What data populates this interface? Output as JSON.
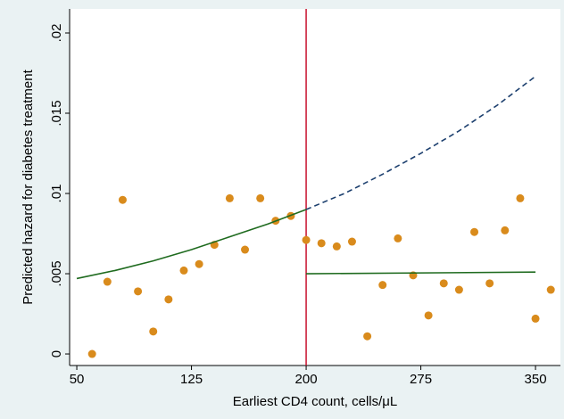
{
  "chart_data": {
    "type": "scatter",
    "x_label": "Earliest CD4 count, cells/μL",
    "y_label": "Predicted hazard for diabetes treatment",
    "xlim": [
      45.3,
      366.3
    ],
    "ylim": [
      -0.00072,
      0.0215
    ],
    "xticks": [
      50,
      125,
      200,
      275,
      350
    ],
    "yticks": [
      {
        "value": 0,
        "label": "0"
      },
      {
        "value": 0.005,
        "label": ".005"
      },
      {
        "value": 0.01,
        "label": ".01"
      },
      {
        "value": 0.015,
        "label": ".015"
      },
      {
        "value": 0.02,
        "label": ".02"
      }
    ],
    "grid": false,
    "series": [
      {
        "type": "scatter",
        "color": "#d98b1c",
        "x": [
          60,
          70,
          80,
          90,
          100,
          110,
          120,
          130,
          140,
          150,
          160,
          170,
          180,
          190,
          200,
          210,
          220,
          230,
          240,
          250,
          260,
          270,
          280,
          290,
          300,
          310,
          320,
          330,
          340,
          350,
          360
        ],
        "values": [
          0,
          0.0045,
          0.0096,
          0.0039,
          0.0014,
          0.0034,
          0.0052,
          0.0056,
          0.0068,
          0.0097,
          0.0065,
          0.0097,
          0.0083,
          0.0086,
          0.0071,
          0.0069,
          0.0067,
          0.007,
          0.0011,
          0.0043,
          0.0072,
          0.0049,
          0.0024,
          0.0044,
          0.004,
          0.0076,
          0.0044,
          0.0077,
          0.0097,
          0.0022,
          0.004
        ]
      },
      {
        "type": "line",
        "color": "#1f6b1f",
        "dashed": false,
        "x": [
          50,
          75,
          100,
          125,
          150,
          175,
          200
        ],
        "values": [
          0.0047,
          0.0052,
          0.0058,
          0.0065,
          0.0073,
          0.0081,
          0.009
        ]
      },
      {
        "type": "line",
        "color": "#1c3f6e",
        "dashed": true,
        "x": [
          200,
          225,
          250,
          275,
          300,
          325,
          350
        ],
        "values": [
          0.009,
          0.01,
          0.0112,
          0.0125,
          0.0139,
          0.0155,
          0.0173
        ]
      },
      {
        "type": "line",
        "color": "#1f6b1f",
        "dashed": false,
        "x": [
          200,
          350
        ],
        "values": [
          0.005,
          0.0051
        ]
      }
    ],
    "vlines": [
      {
        "value": 200,
        "color": "#c8102e"
      }
    ]
  }
}
